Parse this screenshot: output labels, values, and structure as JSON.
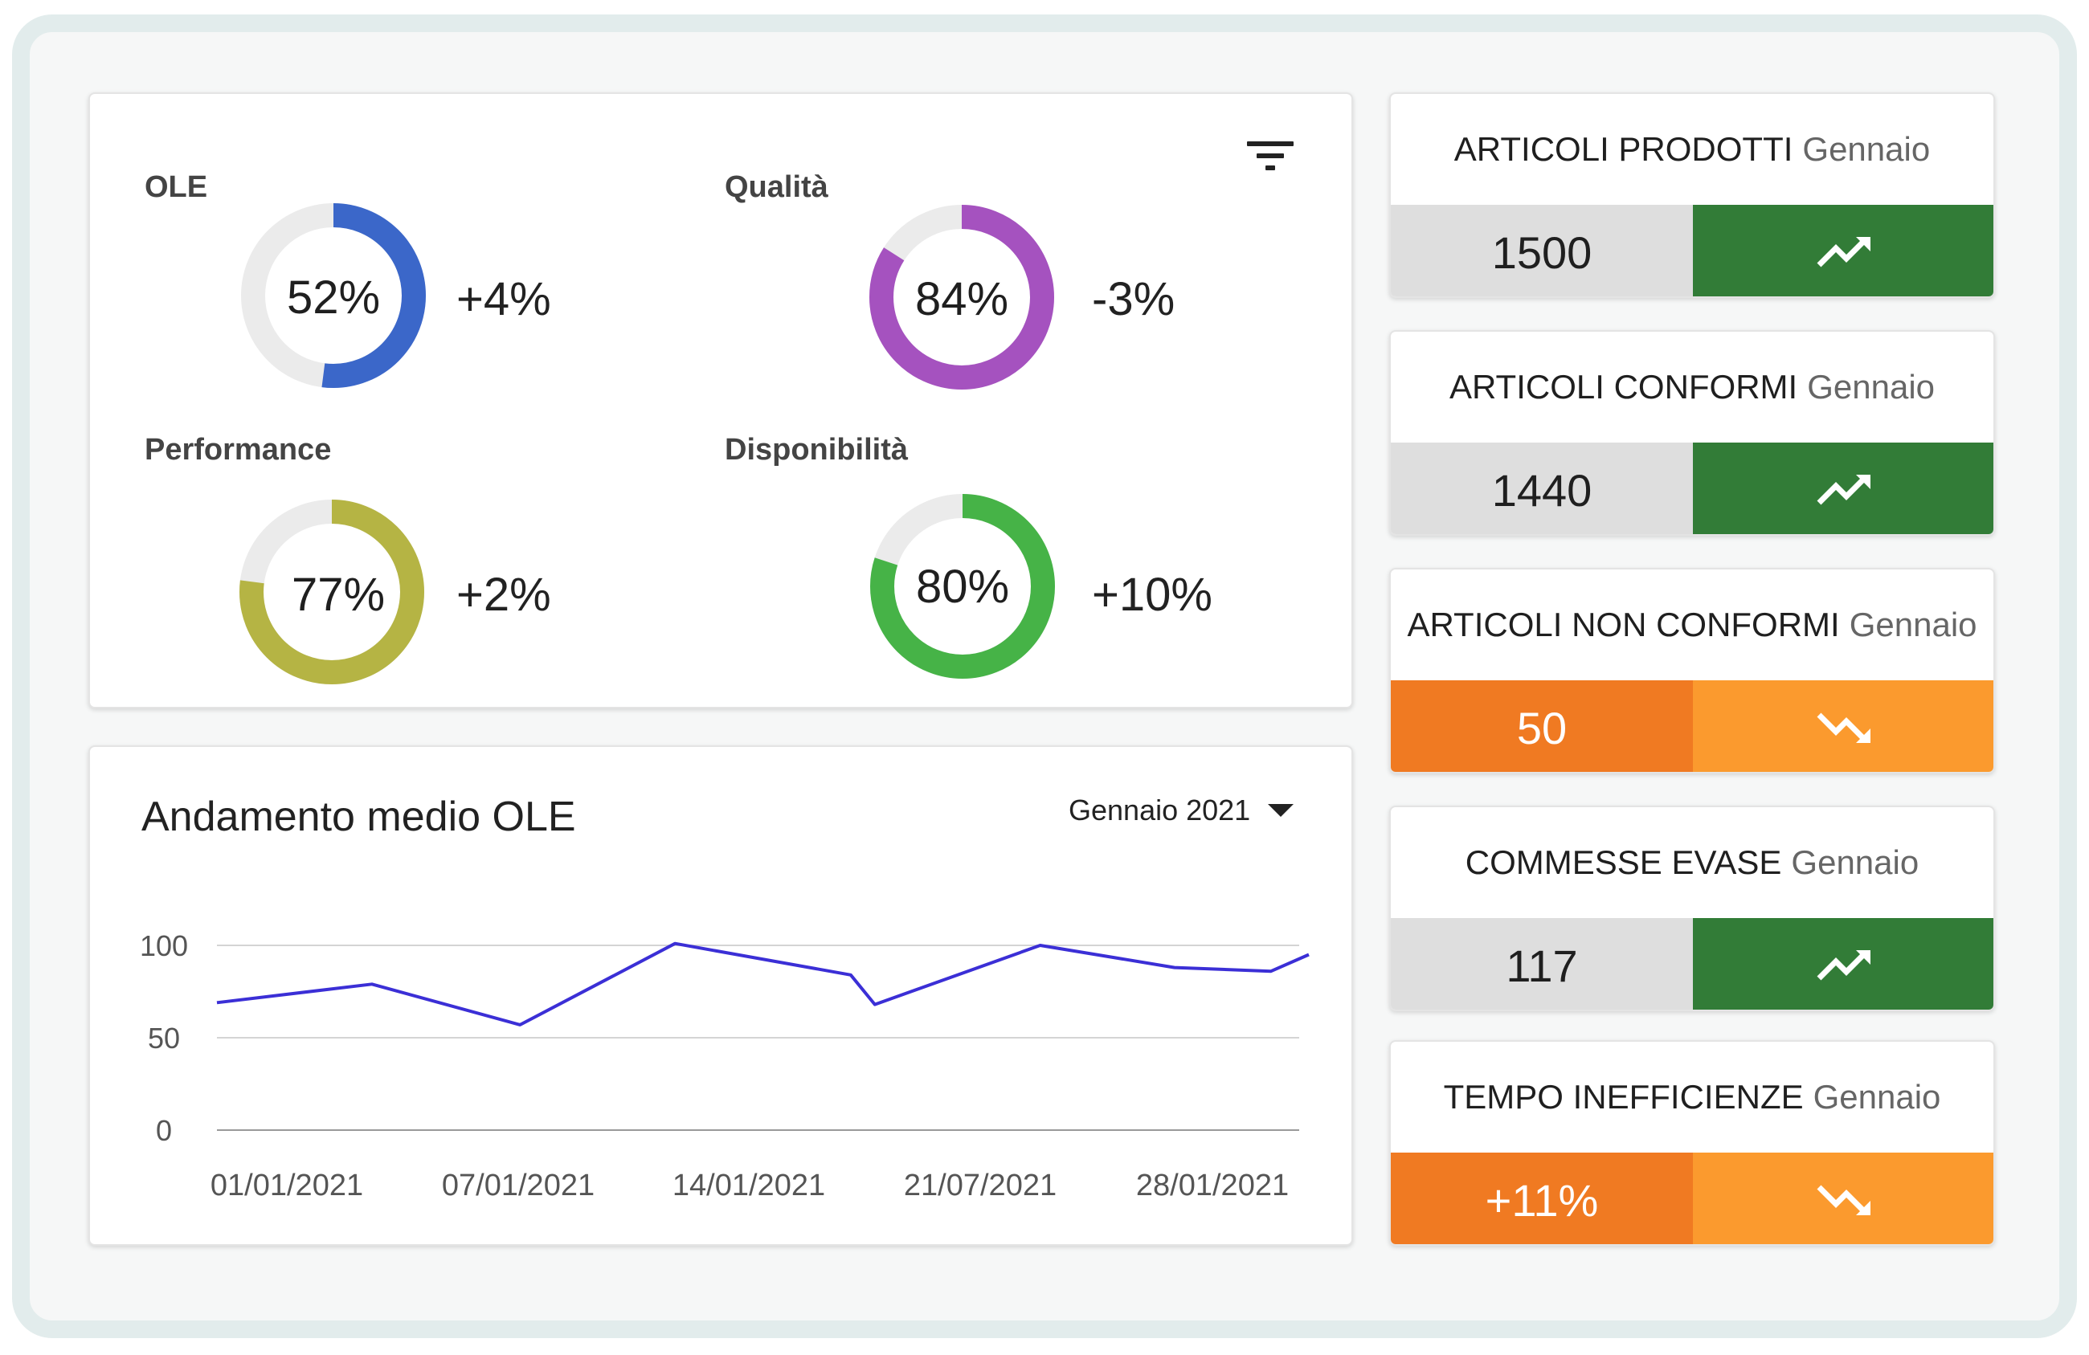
{
  "kpis": [
    {
      "label": "OLE",
      "percent": "52%",
      "value": 52,
      "delta": "+4%",
      "color": "#3b67c9"
    },
    {
      "label": "Qualità",
      "percent": "84%",
      "value": 84,
      "delta": "-3%",
      "color": "#a552bf"
    },
    {
      "label": "Performance",
      "percent": "77%",
      "value": 77,
      "delta": "+2%",
      "color": "#b5b444"
    },
    {
      "label": "Disponibilità",
      "percent": "80%",
      "value": 80,
      "delta": "+10%",
      "color": "#46b347"
    }
  ],
  "donut_track_color": "#ebebeb",
  "filter_icon": "filter-icon",
  "chart_card": {
    "title": "Andamento medio OLE",
    "period": "Gennaio 2021",
    "period_icon": "caret-down-icon"
  },
  "chart_data": {
    "type": "line",
    "title": "Andamento medio OLE",
    "xlabel": "",
    "ylabel": "",
    "ylim": [
      0,
      100
    ],
    "yticks": [
      0,
      50,
      100
    ],
    "xticks": [
      "01/01/2021",
      "07/01/2021",
      "14/01/2021",
      "21/07/2021",
      "28/01/2021"
    ],
    "grid": true,
    "line_color": "#3b2fd6",
    "series": [
      {
        "points": [
          {
            "x": 1,
            "y": 69
          },
          {
            "x": 5.5,
            "y": 79
          },
          {
            "x": 9.8,
            "y": 57
          },
          {
            "x": 14.3,
            "y": 101
          },
          {
            "x": 19.4,
            "y": 84
          },
          {
            "x": 20.1,
            "y": 68
          },
          {
            "x": 24.9,
            "y": 100
          },
          {
            "x": 28.8,
            "y": 88
          },
          {
            "x": 31.6,
            "y": 86
          },
          {
            "x": 32.7,
            "y": 95
          }
        ]
      }
    ]
  },
  "stat_cards": [
    {
      "title": "ARTICOLI PRODOTTI",
      "period": "Gennaio",
      "value": "1500",
      "trend": "up",
      "trend_icon": "trending-up-icon",
      "value_bg": "#dedede",
      "value_color": "#1f1f1f",
      "trend_bg": "#327c37"
    },
    {
      "title": "ARTICOLI CONFORMI",
      "period": "Gennaio",
      "value": "1440",
      "trend": "up",
      "trend_icon": "trending-up-icon",
      "value_bg": "#dedede",
      "value_color": "#1f1f1f",
      "trend_bg": "#327c37"
    },
    {
      "title": "ARTICOLI NON CONFORMI",
      "period": "Gennaio",
      "value": "50",
      "trend": "down",
      "trend_icon": "trending-down-icon",
      "value_bg": "#f07a22",
      "value_color": "#ffffff",
      "trend_bg": "#fb9a2e"
    },
    {
      "title": "COMMESSE EVASE",
      "period": "Gennaio",
      "value": "117",
      "trend": "up",
      "trend_icon": "trending-up-icon",
      "value_bg": "#dedede",
      "value_color": "#1f1f1f",
      "trend_bg": "#327c37"
    },
    {
      "title": "TEMPO INEFFICIENZE",
      "period": "Gennaio",
      "value": "+11%",
      "trend": "down",
      "trend_icon": "trending-down-icon",
      "value_bg": "#f07a22",
      "value_color": "#ffffff",
      "trend_bg": "#fb9a2e"
    }
  ]
}
